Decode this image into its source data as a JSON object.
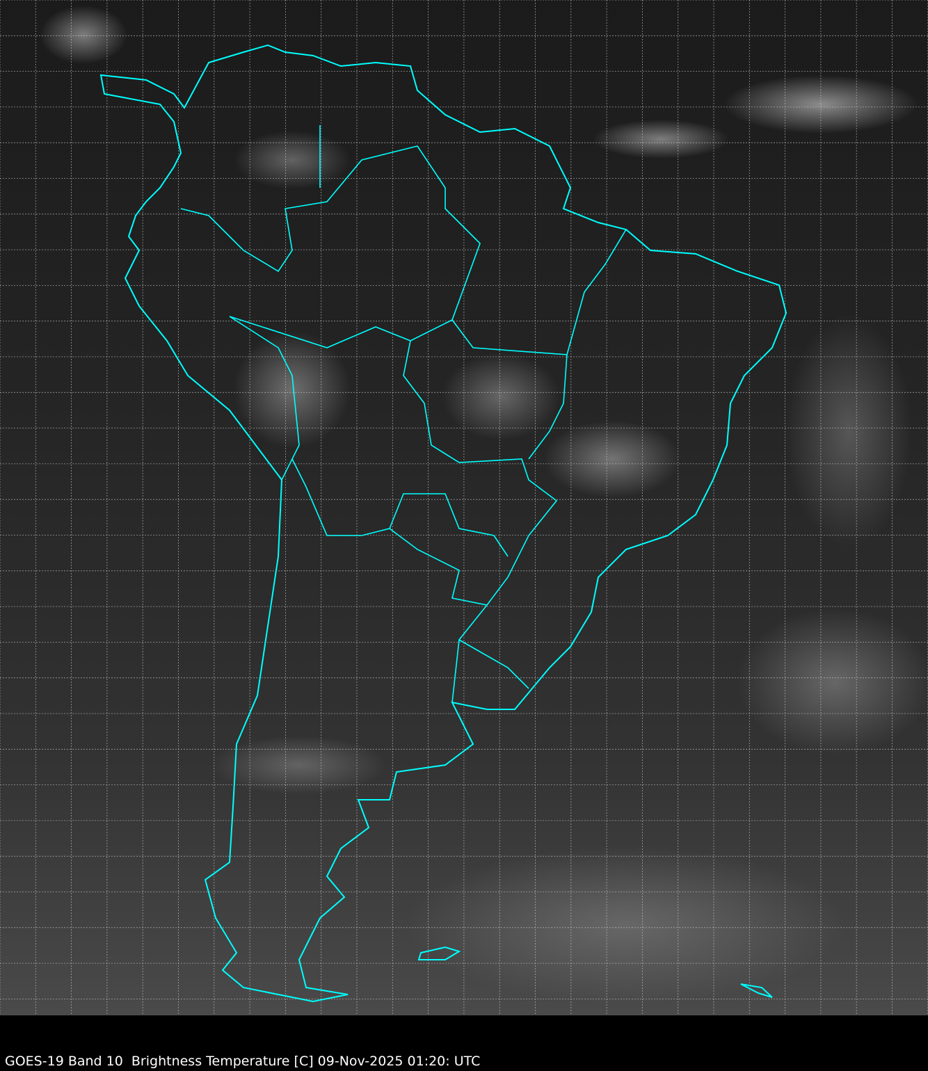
{
  "caption": "GOES-19 Band 10  Brightness Temperature [C] 09-Nov-2025 01:20: UTC",
  "colors": {
    "coastline": "#00ffff",
    "grid": "#cccccc",
    "background": "#000000"
  },
  "map": {
    "region": "South America",
    "grid": true,
    "grid_style": "dashed"
  }
}
